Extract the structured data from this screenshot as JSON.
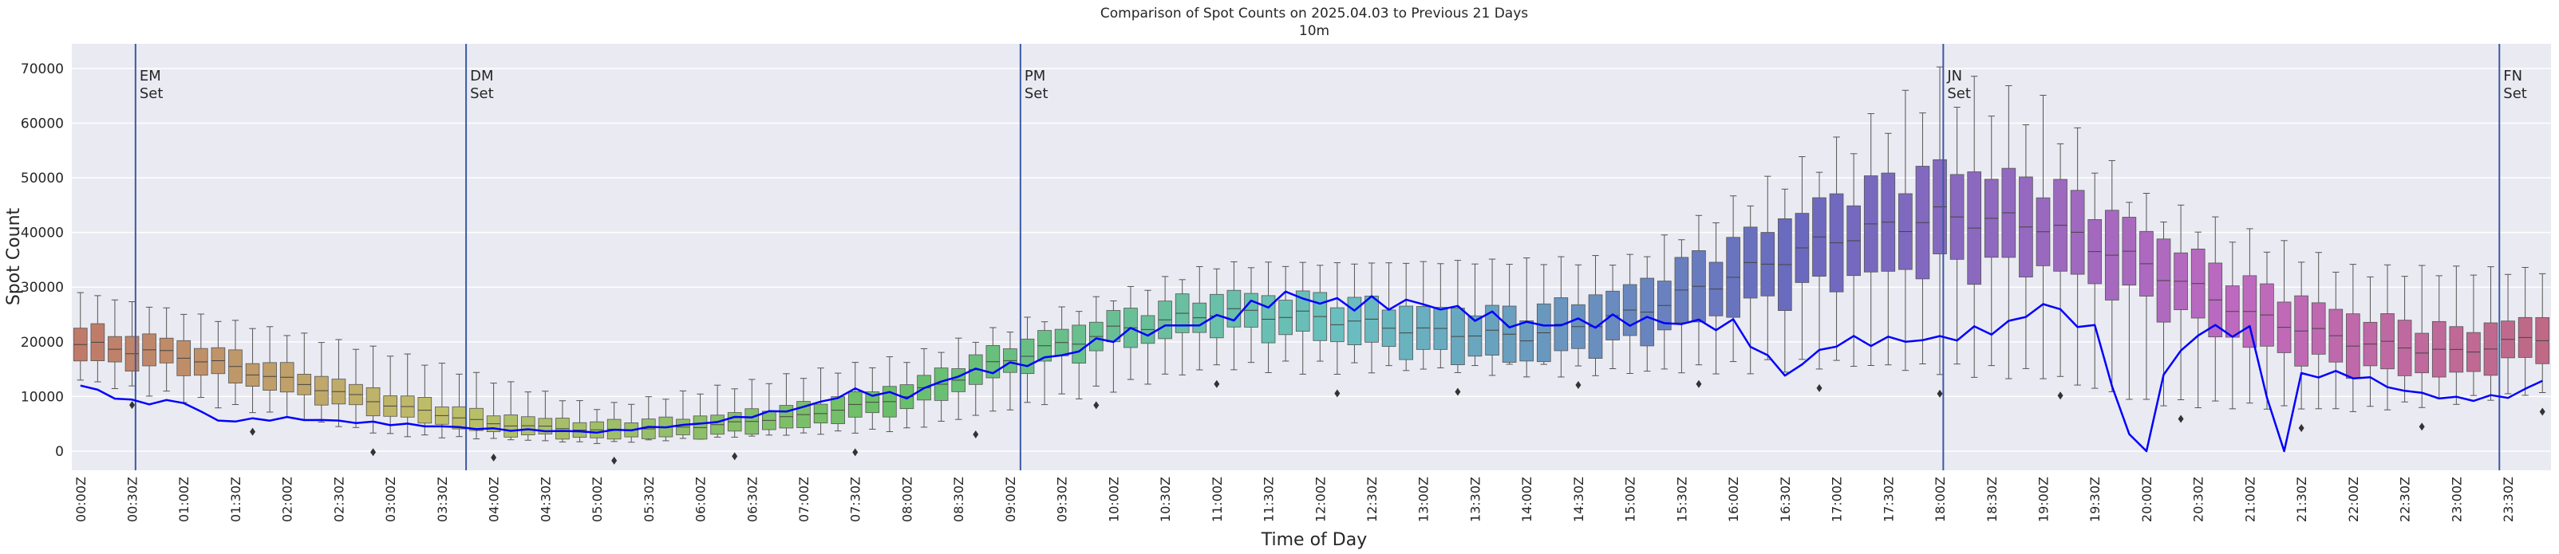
{
  "chart_data": {
    "type": "box",
    "title": "Comparison of Spot Counts on 2025.04.03 to Previous 21 Days",
    "subtitle": "10m",
    "xlabel": "Time of Day",
    "ylabel": "Spot Count",
    "ylim": [
      -3500,
      74500
    ],
    "yticks": [
      0,
      10000,
      20000,
      30000,
      40000,
      50000,
      60000,
      70000
    ],
    "xtick_labels": [
      "00:00Z",
      "00:30Z",
      "01:00Z",
      "01:30Z",
      "02:00Z",
      "02:30Z",
      "03:00Z",
      "03:30Z",
      "04:00Z",
      "04:30Z",
      "05:00Z",
      "05:30Z",
      "06:00Z",
      "06:30Z",
      "07:00Z",
      "07:30Z",
      "08:00Z",
      "08:30Z",
      "09:00Z",
      "09:30Z",
      "10:00Z",
      "10:30Z",
      "11:00Z",
      "11:30Z",
      "12:00Z",
      "12:30Z",
      "13:00Z",
      "13:30Z",
      "14:00Z",
      "14:30Z",
      "15:00Z",
      "15:30Z",
      "16:00Z",
      "16:30Z",
      "17:00Z",
      "17:30Z",
      "18:00Z",
      "18:30Z",
      "19:00Z",
      "19:30Z",
      "20:00Z",
      "20:30Z",
      "21:00Z",
      "21:30Z",
      "22:00Z",
      "22:30Z",
      "23:00Z",
      "23:30Z"
    ],
    "bin_minutes": 10,
    "num_bins": 144,
    "box_median_anchors": [
      [
        0,
        19500
      ],
      [
        6,
        17500
      ],
      [
        12,
        13000
      ],
      [
        18,
        8500
      ],
      [
        24,
        5000
      ],
      [
        30,
        3800
      ],
      [
        36,
        4500
      ],
      [
        42,
        6500
      ],
      [
        48,
        10000
      ],
      [
        54,
        17000
      ],
      [
        60,
        22000
      ],
      [
        66,
        25500
      ],
      [
        72,
        24500
      ],
      [
        78,
        22000
      ],
      [
        84,
        21000
      ],
      [
        90,
        25000
      ],
      [
        96,
        32000
      ],
      [
        102,
        39000
      ],
      [
        108,
        43000
      ],
      [
        114,
        41500
      ],
      [
        120,
        34000
      ],
      [
        126,
        25000
      ],
      [
        132,
        20000
      ],
      [
        138,
        18000
      ],
      [
        143,
        21000
      ],
      [
        144,
        21000
      ]
    ],
    "box_iqr_half_anchors": [
      [
        0,
        3000
      ],
      [
        30,
        1500
      ],
      [
        60,
        3000
      ],
      [
        90,
        5000
      ],
      [
        108,
        9000
      ],
      [
        120,
        6500
      ],
      [
        144,
        3500
      ]
    ],
    "box_whisker_top_anchors": [
      [
        0,
        29000
      ],
      [
        18,
        18000
      ],
      [
        30,
        8000
      ],
      [
        48,
        17000
      ],
      [
        66,
        34000
      ],
      [
        90,
        35000
      ],
      [
        102,
        55000
      ],
      [
        108,
        67000
      ],
      [
        114,
        62000
      ],
      [
        120,
        45000
      ],
      [
        132,
        33000
      ],
      [
        144,
        33000
      ]
    ],
    "box_whisker_bottom_anchors": [
      [
        0,
        13000
      ],
      [
        18,
        3000
      ],
      [
        30,
        1500
      ],
      [
        48,
        4000
      ],
      [
        66,
        15500
      ],
      [
        90,
        14500
      ],
      [
        102,
        16000
      ],
      [
        114,
        14000
      ],
      [
        120,
        9000
      ],
      [
        132,
        7500
      ],
      [
        144,
        11000
      ]
    ],
    "current_day_series": {
      "name": "2025.04.03",
      "color": "#0000ff",
      "anchors": [
        [
          0,
          12000
        ],
        [
          3,
          9000
        ],
        [
          6,
          9000
        ],
        [
          8,
          5500
        ],
        [
          12,
          6000
        ],
        [
          18,
          5000
        ],
        [
          24,
          4000
        ],
        [
          30,
          3500
        ],
        [
          36,
          5000
        ],
        [
          42,
          8000
        ],
        [
          45,
          11000
        ],
        [
          48,
          10000
        ],
        [
          51,
          14000
        ],
        [
          54,
          15500
        ],
        [
          57,
          17500
        ],
        [
          60,
          21000
        ],
        [
          63,
          22500
        ],
        [
          66,
          24000
        ],
        [
          70,
          28500
        ],
        [
          73,
          27000
        ],
        [
          78,
          27000
        ],
        [
          84,
          23000
        ],
        [
          90,
          24000
        ],
        [
          96,
          23000
        ],
        [
          99,
          14000
        ],
        [
          102,
          20000
        ],
        [
          108,
          20500
        ],
        [
          112,
          23000
        ],
        [
          114,
          27000
        ],
        [
          117,
          22000
        ],
        [
          119,
          3000
        ],
        [
          120,
          0
        ],
        [
          121,
          14000
        ],
        [
          123,
          22000
        ],
        [
          126,
          22000
        ],
        [
          127,
          10000
        ],
        [
          128,
          0
        ],
        [
          129,
          14000
        ],
        [
          132,
          14000
        ],
        [
          135,
          11000
        ],
        [
          138,
          9500
        ],
        [
          141,
          10000
        ],
        [
          144,
          14000
        ]
      ],
      "dropouts": [
        [
          119,
          4000,
          117,
          0
        ],
        [
          128,
          9000,
          127,
          0
        ]
      ]
    },
    "markers": [
      {
        "label": "EM Set",
        "line1": "EM",
        "line2": "Set",
        "x_bin": 3.2
      },
      {
        "label": "DM Set",
        "line1": "DM",
        "line2": "Set",
        "x_bin": 22.4
      },
      {
        "label": "PM Set",
        "line1": "PM",
        "line2": "Set",
        "x_bin": 54.6
      },
      {
        "label": "JN Set",
        "line1": "JN",
        "line2": "Set",
        "x_bin": 108.2
      },
      {
        "label": "FN Set",
        "line1": "FN",
        "line2": "Set",
        "x_bin": 140.5
      }
    ]
  }
}
